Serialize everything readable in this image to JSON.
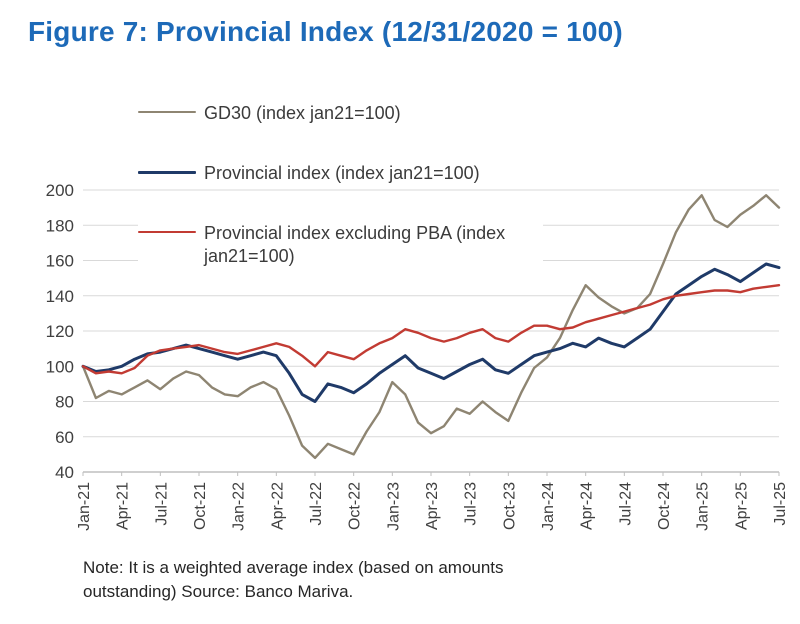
{
  "figure": {
    "title": "Figure 7: Provincial Index (12/31/2020 = 100)",
    "note_line1": "Note: It is a weighted average index (based on amounts",
    "note_line2": "outstanding) Source: Banco Mariva."
  },
  "colors": {
    "title": "#1d6ab8",
    "grid": "#d9d9d9",
    "axis": "#bfbfbf",
    "axis_text": "#404040"
  },
  "chart_data": {
    "type": "line",
    "title": "Figure 7: Provincial Index (12/31/2020 = 100)",
    "xlabel": "",
    "ylabel": "",
    "ylim": [
      40,
      200
    ],
    "yticks": [
      40,
      60,
      80,
      100,
      120,
      140,
      160,
      180,
      200
    ],
    "grid": "horizontal",
    "legend_position": "top-left overlay",
    "x_frequency": "monthly Jan-2021 to Jul-2025",
    "x_tick_labels": [
      "Jan-21",
      "Apr-21",
      "Jul-21",
      "Oct-21",
      "Jan-22",
      "Apr-22",
      "Jul-22",
      "Oct-22",
      "Jan-23",
      "Apr-23",
      "Jul-23",
      "Oct-23",
      "Jan-24",
      "Apr-24",
      "Jul-24",
      "Oct-24",
      "Jan-25",
      "Apr-25",
      "Jul-25"
    ],
    "x_tick_step": 3,
    "series": [
      {
        "id": "gd30",
        "name": "GD30 (index jan21=100)",
        "color": "#8e8572",
        "width": 2.4,
        "values": [
          100,
          82,
          86,
          84,
          88,
          92,
          87,
          93,
          97,
          95,
          88,
          84,
          83,
          88,
          91,
          87,
          72,
          55,
          48,
          56,
          53,
          50,
          63,
          74,
          91,
          84,
          68,
          62,
          66,
          76,
          73,
          80,
          74,
          69,
          85,
          99,
          105,
          116,
          132,
          146,
          139,
          134,
          130,
          133,
          141,
          158,
          176,
          189,
          197,
          183,
          179,
          186,
          191,
          197,
          190
        ]
      },
      {
        "id": "provincial",
        "name": "Provincial index (index jan21=100)",
        "color": "#1f3a68",
        "width": 3,
        "values": [
          100,
          97,
          98,
          100,
          104,
          107,
          108,
          110,
          112,
          110,
          108,
          106,
          104,
          106,
          108,
          106,
          96,
          84,
          80,
          90,
          88,
          85,
          90,
          96,
          101,
          106,
          99,
          96,
          93,
          97,
          101,
          104,
          98,
          96,
          101,
          106,
          108,
          110,
          113,
          111,
          116,
          113,
          111,
          116,
          121,
          131,
          141,
          146,
          151,
          155,
          152,
          148,
          153,
          158,
          156
        ]
      },
      {
        "id": "provincial_ex_pba",
        "name": "Provincial index excluding PBA (index jan21=100)",
        "color": "#c23b33",
        "width": 2.4,
        "values": [
          100,
          96,
          97,
          96,
          99,
          106,
          109,
          110,
          111,
          112,
          110,
          108,
          107,
          109,
          111,
          113,
          111,
          106,
          100,
          108,
          106,
          104,
          109,
          113,
          116,
          121,
          119,
          116,
          114,
          116,
          119,
          121,
          116,
          114,
          119,
          123,
          123,
          121,
          122,
          125,
          127,
          129,
          131,
          133,
          135,
          138,
          140,
          141,
          142,
          143,
          143,
          142,
          144,
          145,
          146
        ]
      }
    ]
  }
}
